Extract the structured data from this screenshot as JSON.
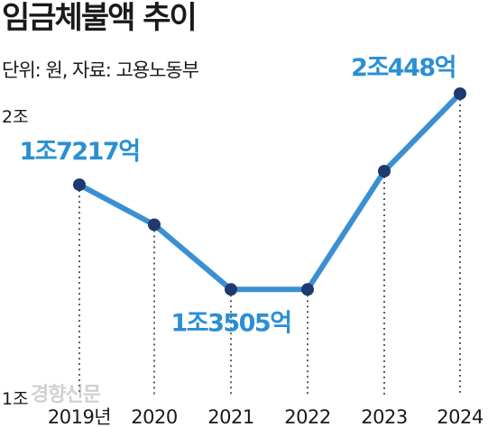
{
  "chart_data": {
    "type": "line",
    "title": "임금체불액 추이",
    "subtitle": "단위: 원, 자료: 고용노동부",
    "x": [
      "2019년",
      "2020",
      "2021",
      "2022",
      "2023",
      "2024"
    ],
    "series": [
      {
        "values": [
          17217,
          15800,
          13505,
          13505,
          17700,
          20448
        ]
      }
    ],
    "ylim": [
      10000,
      20000
    ],
    "yticks": [
      {
        "value": 20000,
        "label": "2조"
      },
      {
        "value": 10000,
        "label": "1조"
      }
    ],
    "data_labels": [
      {
        "index": 0,
        "text": "1조7217억"
      },
      {
        "index": 2,
        "text": "1조3505억"
      },
      {
        "index": 5,
        "text": "2조448억"
      }
    ],
    "grid": false,
    "colors": {
      "line": "#3b8fd3",
      "point": "#1e3a6e",
      "label": "#2b8fd4",
      "guide": "#333333"
    }
  },
  "watermark": "경향신문"
}
